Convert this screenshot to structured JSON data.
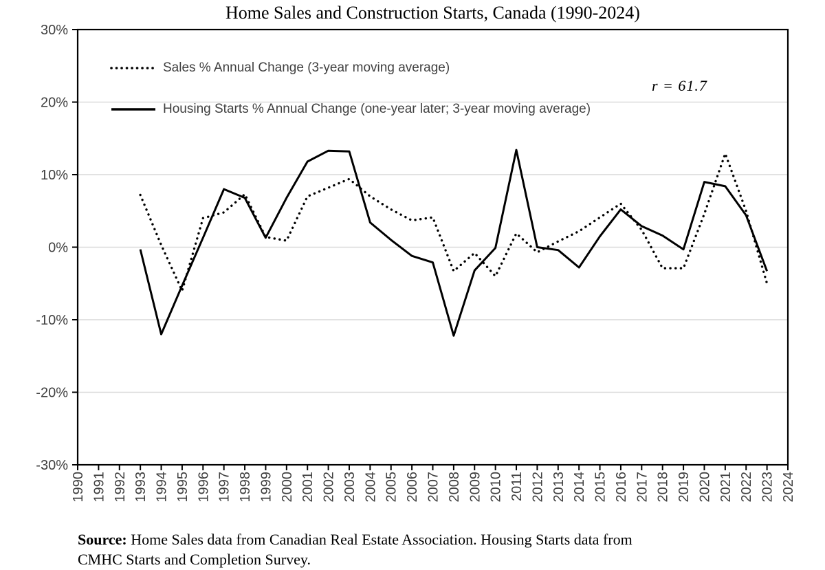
{
  "title": "Home Sales and Construction Starts, Canada (1990-2024)",
  "annotation": {
    "text": "r = 61.7"
  },
  "legend": {
    "sales_label": "Sales % Annual Change (3-year moving average)",
    "starts_label": "Housing Starts % Annual Change (one-year later; 3-year moving average)"
  },
  "source": {
    "label": "Source:",
    "line1": "Home Sales data from Canadian Real Estate Association. Housing Starts data from",
    "line2": "CMHC Starts and Completion Survey."
  },
  "chart_data": {
    "type": "line",
    "title": "Home Sales and Construction Starts, Canada (1990-2024)",
    "xlabel": "",
    "ylabel": "",
    "x_axis": {
      "range": [
        1990,
        2024
      ],
      "tick_labels": [
        "1990",
        "1991",
        "1992",
        "1993",
        "1994",
        "1995",
        "1996",
        "1997",
        "1998",
        "1999",
        "2000",
        "2001",
        "2002",
        "2003",
        "2004",
        "2005",
        "2006",
        "2007",
        "2008",
        "2009",
        "2010",
        "2011",
        "2012",
        "2013",
        "2014",
        "2015",
        "2016",
        "2017",
        "2018",
        "2019",
        "2020",
        "2021",
        "2022",
        "2023",
        "2024"
      ],
      "tick_label_rotation_deg": 90
    },
    "y_axis": {
      "range_pct": [
        -30,
        30
      ],
      "tick_interval_pct": 10,
      "tick_labels": [
        "30%",
        "20%",
        "10%",
        "0%",
        "-10%",
        "-20%",
        "-30%"
      ]
    },
    "grid": true,
    "legend_position": "inside-top-left",
    "correlation_annotation": "r = 61.7",
    "years": [
      1993,
      1994,
      1995,
      1996,
      1997,
      1998,
      1999,
      2000,
      2001,
      2002,
      2003,
      2004,
      2005,
      2006,
      2007,
      2008,
      2009,
      2010,
      2011,
      2012,
      2013,
      2014,
      2015,
      2016,
      2017,
      2018,
      2019,
      2020,
      2021,
      2022,
      2023
    ],
    "series": [
      {
        "name": "Sales % Annual Change (3-year moving average)",
        "style": "dotted",
        "color": "#000000",
        "values": [
          7.2,
          0.3,
          -6.0,
          4.0,
          4.8,
          7.3,
          1.4,
          0.9,
          7.0,
          8.2,
          9.4,
          7.0,
          5.2,
          3.7,
          4.1,
          -3.3,
          -0.8,
          -4.0,
          1.9,
          -0.7,
          0.8,
          2.2,
          4.1,
          6.0,
          2.4,
          -2.9,
          -2.9,
          4.6,
          12.9,
          5.0,
          -5.0
        ]
      },
      {
        "name": "Housing Starts % Annual Change (one-year later; 3-year moving average)",
        "style": "solid",
        "color": "#000000",
        "values": [
          -0.3,
          -12.0,
          -5.3,
          1.3,
          8.0,
          6.8,
          1.3,
          6.8,
          11.8,
          13.3,
          13.2,
          3.4,
          1.0,
          -1.2,
          -2.1,
          -12.2,
          -3.2,
          -0.1,
          13.4,
          0.0,
          -0.4,
          -2.8,
          1.5,
          5.2,
          2.9,
          1.6,
          -0.3,
          9.0,
          8.4,
          4.4,
          -3.3
        ]
      }
    ],
    "colors": {
      "line": "#000000",
      "gridline": "#d9d9d9",
      "axis_text": "#404040",
      "plot_border": "#000000"
    }
  }
}
